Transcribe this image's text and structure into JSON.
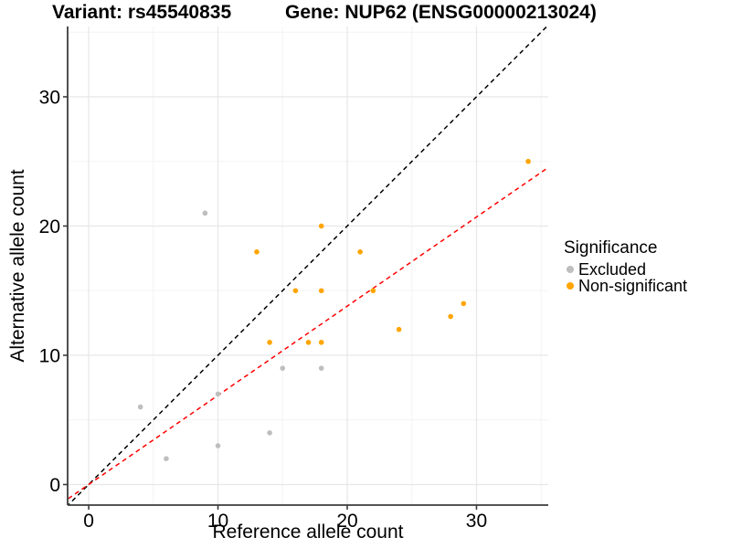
{
  "titles": {
    "variant": "Variant: rs45540835",
    "gene": "Gene: NUP62 (ENSG00000213024)"
  },
  "axes": {
    "xlabel": "Reference allele count",
    "ylabel": "Alternative allele count",
    "x_ticks": [
      "0",
      "10",
      "20",
      "30"
    ],
    "y_ticks": [
      "0",
      "10",
      "20",
      "30"
    ]
  },
  "legend": {
    "title": "Significance",
    "items": [
      {
        "label": "Excluded",
        "color": "#BEBEBE"
      },
      {
        "label": "Non-significant",
        "color": "#FFA500"
      }
    ]
  },
  "chart_data": {
    "type": "scatter",
    "title": "Variant: rs45540835 / Gene: NUP62 (ENSG00000213024)",
    "xlabel": "Reference allele count",
    "ylabel": "Alternative allele count",
    "xlim": [
      -1.63,
      35.55
    ],
    "ylim": [
      -1.59,
      35.44
    ],
    "x_major_ticks": [
      0,
      10,
      20,
      30
    ],
    "y_major_ticks": [
      0,
      10,
      20,
      30
    ],
    "x_minor_ticks": [
      5,
      15,
      25,
      35
    ],
    "y_minor_ticks": [
      5,
      15,
      25,
      35
    ],
    "grid": true,
    "legend_position": "right",
    "series": [
      {
        "name": "Excluded",
        "color": "#BEBEBE",
        "points": [
          [
            4,
            6
          ],
          [
            6,
            2
          ],
          [
            9,
            21
          ],
          [
            10,
            3
          ],
          [
            10,
            7
          ],
          [
            14,
            4
          ],
          [
            15,
            9
          ],
          [
            18,
            9
          ]
        ]
      },
      {
        "name": "Non-significant",
        "color": "#FFA500",
        "points": [
          [
            13,
            18
          ],
          [
            14,
            11
          ],
          [
            16,
            15
          ],
          [
            17,
            11
          ],
          [
            18,
            11
          ],
          [
            18,
            15
          ],
          [
            18,
            20
          ],
          [
            21,
            18
          ],
          [
            22,
            15
          ],
          [
            24,
            12
          ],
          [
            28,
            13
          ],
          [
            29,
            14
          ],
          [
            34,
            25
          ]
        ]
      }
    ],
    "lines": [
      {
        "name": "identity",
        "color": "#000000",
        "dash": "dashed",
        "slope": 1,
        "intercept": 0
      },
      {
        "name": "regression",
        "color": "#FF0000",
        "dash": "dashed",
        "slope": 0.69,
        "intercept": 0
      }
    ],
    "colors": {
      "grid_major": "#E7E7E7",
      "grid_minor": "#F3F3F3",
      "axis": "#3C3C3C",
      "tick_label": "#000000"
    }
  }
}
